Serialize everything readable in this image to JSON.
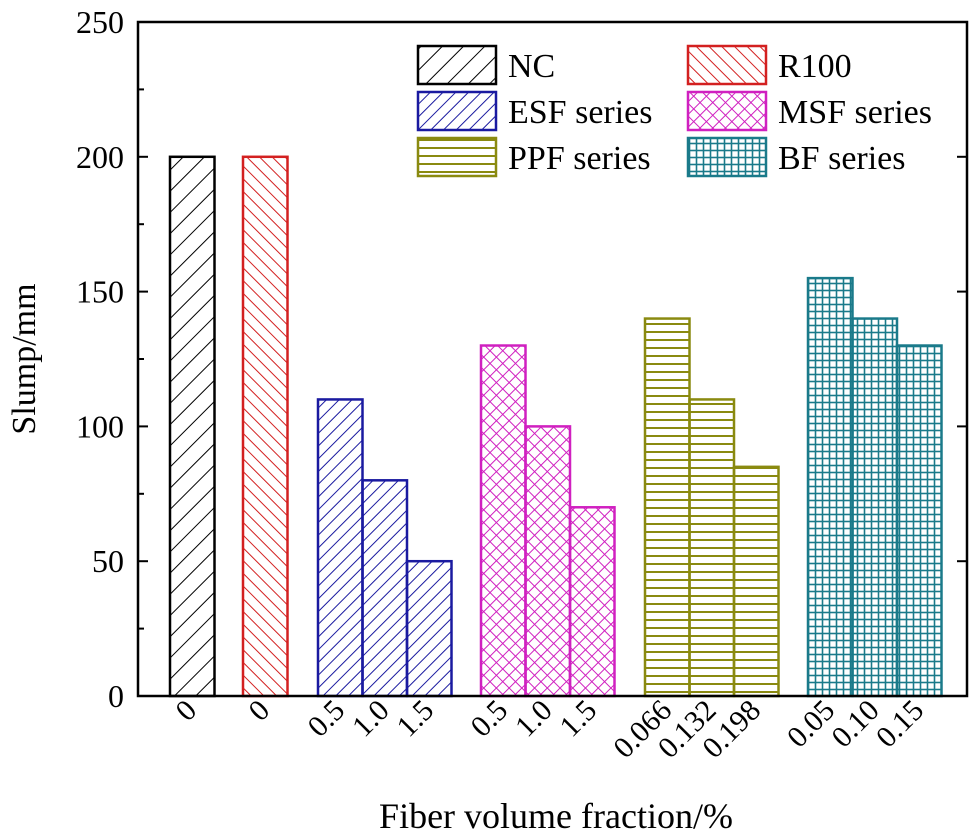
{
  "chart_data": {
    "type": "bar",
    "ylabel": "Slump/mm",
    "xlabel": "Fiber volume fraction/%",
    "ylim": [
      0,
      250
    ],
    "yticks": [
      0,
      50,
      100,
      150,
      200,
      250
    ],
    "grid": false,
    "legend_position": "top-right",
    "series": [
      {
        "name": "NC",
        "color": "#000000",
        "pattern": "diag-right",
        "categories": [
          "0"
        ],
        "values": [
          200
        ]
      },
      {
        "name": "R100",
        "color": "#d32020",
        "pattern": "diag-left",
        "categories": [
          "0"
        ],
        "values": [
          200
        ]
      },
      {
        "name": "ESF series",
        "color": "#1a1aa0",
        "pattern": "diag-right-dense",
        "categories": [
          "0.5",
          "1.0",
          "1.5"
        ],
        "values": [
          110,
          80,
          50
        ]
      },
      {
        "name": "MSF series",
        "color": "#d020c0",
        "pattern": "crosshatch",
        "categories": [
          "0.5",
          "1.0",
          "1.5"
        ],
        "values": [
          130,
          100,
          70
        ]
      },
      {
        "name": "PPF series",
        "color": "#8a8a10",
        "pattern": "horizontal",
        "categories": [
          "0.066",
          "0.132",
          "0.198"
        ],
        "values": [
          140,
          110,
          85
        ]
      },
      {
        "name": "BF series",
        "color": "#1a7a8a",
        "pattern": "grid",
        "categories": [
          "0.05",
          "0.10",
          "0.15"
        ],
        "values": [
          155,
          140,
          130
        ]
      }
    ]
  }
}
